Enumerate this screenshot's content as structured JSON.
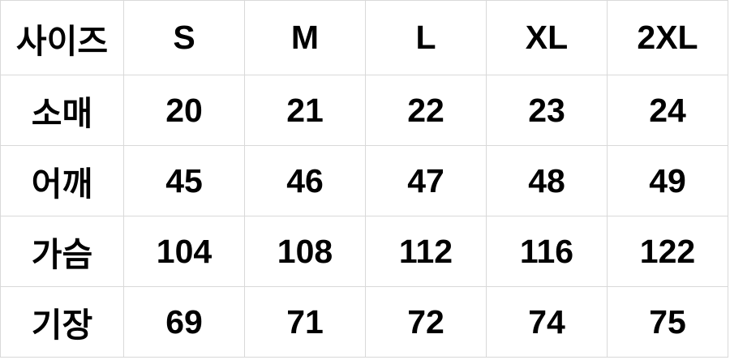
{
  "page": {
    "colors": {
      "background": "#ffffff",
      "border": "#d9d9d9",
      "text": "#000000"
    }
  },
  "chart_data": {
    "type": "table",
    "columns": [
      "사이즈",
      "S",
      "M",
      "L",
      "XL",
      "2XL"
    ],
    "rows": [
      {
        "label": "소매",
        "values": [
          "20",
          "21",
          "22",
          "23",
          "24"
        ]
      },
      {
        "label": "어깨",
        "values": [
          "45",
          "46",
          "47",
          "48",
          "49"
        ]
      },
      {
        "label": "가슴",
        "values": [
          "104",
          "108",
          "112",
          "116",
          "122"
        ]
      },
      {
        "label": "기장",
        "values": [
          "69",
          "71",
          "72",
          "74",
          "75"
        ]
      }
    ]
  }
}
